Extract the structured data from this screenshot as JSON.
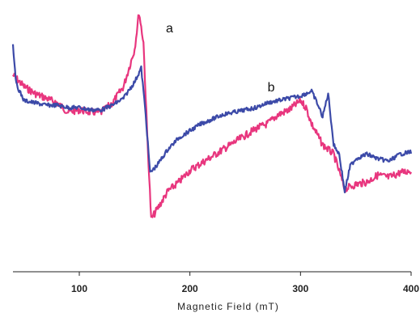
{
  "chart_data": {
    "type": "line",
    "xlabel": "Magnetic Field (mT)",
    "ylabel": "",
    "title": "",
    "xlim": [
      40,
      400
    ],
    "ylim": [
      0,
      1
    ],
    "grid": false,
    "legend": "none",
    "x_ticks": [
      100,
      200,
      300,
      400
    ],
    "series": [
      {
        "name": "a",
        "color": "#e8367e",
        "points": [
          [
            40,
            0.72
          ],
          [
            50,
            0.67
          ],
          [
            60,
            0.64
          ],
          [
            70,
            0.62
          ],
          [
            80,
            0.6
          ],
          [
            90,
            0.56
          ],
          [
            100,
            0.57
          ],
          [
            110,
            0.56
          ],
          [
            120,
            0.56
          ],
          [
            130,
            0.6
          ],
          [
            140,
            0.67
          ],
          [
            150,
            0.83
          ],
          [
            154,
            0.99
          ],
          [
            158,
            0.86
          ],
          [
            162,
            0.4
          ],
          [
            165,
            0.1
          ],
          [
            170,
            0.14
          ],
          [
            180,
            0.22
          ],
          [
            190,
            0.26
          ],
          [
            200,
            0.31
          ],
          [
            210,
            0.34
          ],
          [
            220,
            0.37
          ],
          [
            230,
            0.4
          ],
          [
            240,
            0.43
          ],
          [
            250,
            0.46
          ],
          [
            260,
            0.49
          ],
          [
            270,
            0.51
          ],
          [
            280,
            0.55
          ],
          [
            290,
            0.57
          ],
          [
            300,
            0.61
          ],
          [
            305,
            0.58
          ],
          [
            310,
            0.51
          ],
          [
            320,
            0.42
          ],
          [
            330,
            0.38
          ],
          [
            340,
            0.23
          ],
          [
            350,
            0.25
          ],
          [
            360,
            0.26
          ],
          [
            370,
            0.29
          ],
          [
            380,
            0.28
          ],
          [
            390,
            0.3
          ],
          [
            400,
            0.31
          ]
        ]
      },
      {
        "name": "b",
        "color": "#3c4aa8",
        "points": [
          [
            40,
            0.85
          ],
          [
            43,
            0.68
          ],
          [
            50,
            0.61
          ],
          [
            60,
            0.6
          ],
          [
            70,
            0.59
          ],
          [
            80,
            0.59
          ],
          [
            90,
            0.58
          ],
          [
            100,
            0.58
          ],
          [
            110,
            0.57
          ],
          [
            120,
            0.57
          ],
          [
            130,
            0.59
          ],
          [
            140,
            0.62
          ],
          [
            150,
            0.69
          ],
          [
            156,
            0.75
          ],
          [
            160,
            0.55
          ],
          [
            164,
            0.3
          ],
          [
            170,
            0.33
          ],
          [
            180,
            0.4
          ],
          [
            190,
            0.45
          ],
          [
            200,
            0.48
          ],
          [
            210,
            0.51
          ],
          [
            220,
            0.53
          ],
          [
            230,
            0.55
          ],
          [
            240,
            0.56
          ],
          [
            250,
            0.57
          ],
          [
            260,
            0.58
          ],
          [
            270,
            0.6
          ],
          [
            280,
            0.61
          ],
          [
            290,
            0.62
          ],
          [
            300,
            0.63
          ],
          [
            310,
            0.65
          ],
          [
            315,
            0.6
          ],
          [
            320,
            0.54
          ],
          [
            325,
            0.64
          ],
          [
            330,
            0.42
          ],
          [
            335,
            0.38
          ],
          [
            340,
            0.22
          ],
          [
            345,
            0.33
          ],
          [
            350,
            0.36
          ],
          [
            360,
            0.38
          ],
          [
            370,
            0.36
          ],
          [
            380,
            0.35
          ],
          [
            390,
            0.38
          ],
          [
            400,
            0.39
          ]
        ]
      }
    ]
  }
}
